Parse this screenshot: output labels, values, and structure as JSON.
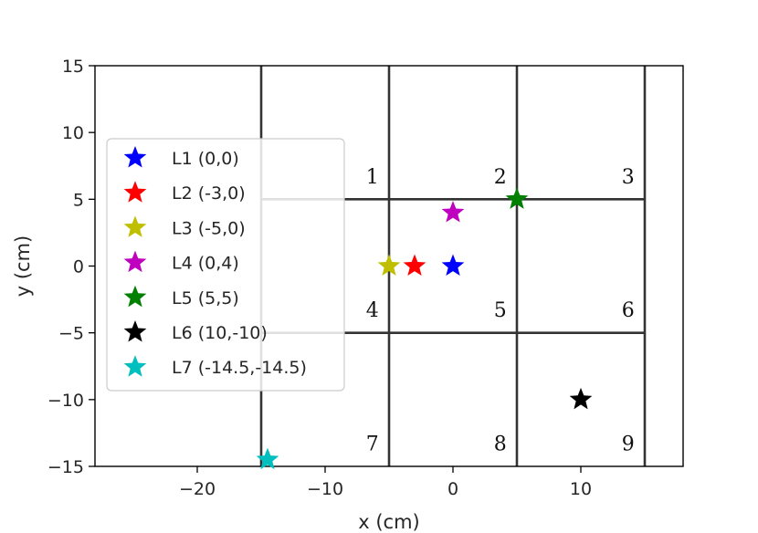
{
  "chart_data": {
    "type": "scatter",
    "title": "",
    "xlabel": "x (cm)",
    "ylabel": "y (cm)",
    "xlim": [
      -28,
      18
    ],
    "ylim": [
      -15,
      15
    ],
    "xticks": [
      -20,
      -10,
      0,
      10
    ],
    "xtick_labels": [
      "−20",
      "−10",
      "0",
      "10"
    ],
    "yticks": [
      -15,
      -10,
      -5,
      0,
      5,
      10,
      15
    ],
    "ytick_labels": [
      "−15",
      "−10",
      "−5",
      "0",
      "5",
      "10",
      "15"
    ],
    "grid": false,
    "legend_position": "center-left",
    "series": [
      {
        "name": "L1 (0,0)",
        "x": 0,
        "y": 0,
        "color": "#0000ff",
        "marker": "star"
      },
      {
        "name": "L2 (-3,0)",
        "x": -3,
        "y": 0,
        "color": "#ff0000",
        "marker": "star"
      },
      {
        "name": "L3 (-5,0)",
        "x": -5,
        "y": 0,
        "color": "#bfbf00",
        "marker": "star"
      },
      {
        "name": "L4 (0,4)",
        "x": 0,
        "y": 4,
        "color": "#bf00bf",
        "marker": "star"
      },
      {
        "name": "L5 (5,5)",
        "x": 5,
        "y": 5,
        "color": "#008000",
        "marker": "star"
      },
      {
        "name": "L6 (10,-10)",
        "x": 10,
        "y": -10,
        "color": "#000000",
        "marker": "star"
      },
      {
        "name": "L7 (-14.5,-14.5)",
        "x": -14.5,
        "y": -14.5,
        "color": "#00bfbf",
        "marker": "star"
      }
    ],
    "region_grid": {
      "vertical_lines": [
        {
          "x": -15,
          "y_from": -15,
          "y_to": 15
        },
        {
          "x": -5,
          "y_from": -15,
          "y_to": 15
        },
        {
          "x": 5,
          "y_from": -15,
          "y_to": 15
        },
        {
          "x": 15,
          "y_from": -15,
          "y_to": 15
        }
      ],
      "horizontal_lines": [
        {
          "y": 5,
          "x_from": -15,
          "x_to": 15
        },
        {
          "y": -5,
          "x_from": -15,
          "x_to": 15
        }
      ],
      "line_color": "#333333"
    },
    "region_labels": [
      {
        "text": "1",
        "x": -6.3,
        "y": 6.2
      },
      {
        "text": "2",
        "x": 3.7,
        "y": 6.2
      },
      {
        "text": "3",
        "x": 13.7,
        "y": 6.2
      },
      {
        "text": "4",
        "x": -6.3,
        "y": -3.8
      },
      {
        "text": "5",
        "x": 3.7,
        "y": -3.8
      },
      {
        "text": "6",
        "x": 13.7,
        "y": -3.8
      },
      {
        "text": "7",
        "x": -6.3,
        "y": -13.8
      },
      {
        "text": "8",
        "x": 3.7,
        "y": -13.8
      },
      {
        "text": "9",
        "x": 13.7,
        "y": -13.8
      }
    ]
  }
}
